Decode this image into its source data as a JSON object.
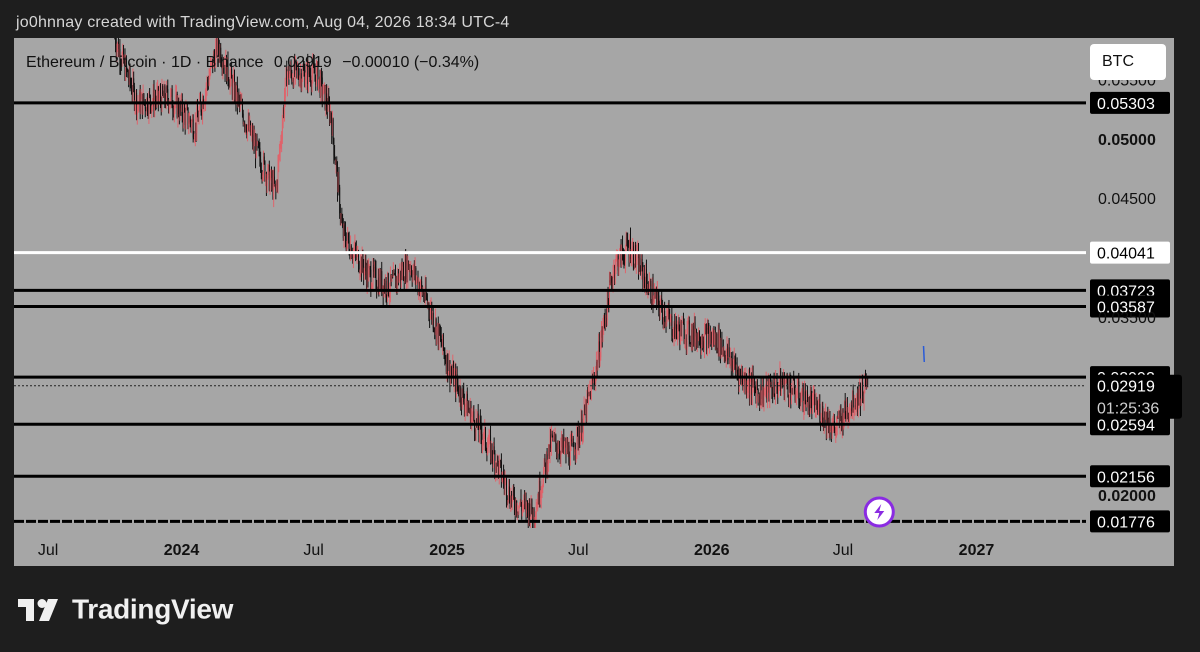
{
  "header": {
    "credit": "jo0hnnay created with TradingView.com, Aug 04, 2026 18:34 UTC-4"
  },
  "legend": {
    "symbol": "Ethereum / Bitcoin · 1D · Binance",
    "price": "0.02919",
    "change": "−0.00010 (−0.34%)"
  },
  "currency_label": "BTC",
  "countdown": "01:25:36",
  "footer": {
    "brand": "TradingView"
  },
  "colors": {
    "background": "#1e1e1e",
    "plot": "#a6a6a6",
    "candle_up": "#e0636b",
    "candle_down": "#111111",
    "level_line": "#000000",
    "highlight_level": "#ffffff",
    "alert_icon": "#8a2be2"
  },
  "chart_data": {
    "type": "candlestick",
    "title": "Ethereum / Bitcoin · 1D · Binance",
    "y_axis": {
      "ticks": [
        "0.05500",
        "0.05000",
        "0.04500",
        "0.03500",
        "0.02000"
      ],
      "range": [
        0.0172,
        0.0585
      ],
      "side": "right"
    },
    "x_axis": {
      "ticks": [
        {
          "label": "Jul",
          "date": "2023-07-01"
        },
        {
          "label": "2024",
          "date": "2024-01-01"
        },
        {
          "label": "Jul",
          "date": "2024-07-01"
        },
        {
          "label": "2025",
          "date": "2025-01-01"
        },
        {
          "label": "Jul",
          "date": "2025-07-01"
        },
        {
          "label": "2026",
          "date": "2026-01-01"
        },
        {
          "label": "Jul",
          "date": "2026-07-01"
        },
        {
          "label": "2027",
          "date": "2027-01-01"
        }
      ],
      "range": [
        "2023-05-15",
        "2027-06-01"
      ]
    },
    "horizontal_levels": [
      {
        "value": 0.05303,
        "label": "0.05303",
        "color": "black"
      },
      {
        "value": 0.04041,
        "label": "0.04041",
        "color": "white"
      },
      {
        "value": 0.03723,
        "label": "0.03723",
        "color": "black"
      },
      {
        "value": 0.03587,
        "label": "0.03587",
        "color": "black"
      },
      {
        "value": 0.02992,
        "label": "0.02992",
        "color": "black"
      },
      {
        "value": 0.02594,
        "label": "0.02594",
        "color": "black"
      },
      {
        "value": 0.02156,
        "label": "0.02156",
        "color": "black"
      },
      {
        "value": 0.01776,
        "label": "0.01776",
        "color": "black"
      }
    ],
    "current_price": {
      "value": 0.02919,
      "label": "0.02919",
      "line": "dotted"
    },
    "price_path": [
      {
        "date": "2023-10-01",
        "close": 0.0585
      },
      {
        "date": "2023-11-01",
        "close": 0.053
      },
      {
        "date": "2023-12-15",
        "close": 0.0535
      },
      {
        "date": "2024-01-20",
        "close": 0.051
      },
      {
        "date": "2024-02-20",
        "close": 0.058
      },
      {
        "date": "2024-03-20",
        "close": 0.053
      },
      {
        "date": "2024-04-20",
        "close": 0.048
      },
      {
        "date": "2024-05-10",
        "close": 0.0455
      },
      {
        "date": "2024-05-25",
        "close": 0.0555
      },
      {
        "date": "2024-07-05",
        "close": 0.0555
      },
      {
        "date": "2024-07-25",
        "close": 0.052
      },
      {
        "date": "2024-08-10",
        "close": 0.042
      },
      {
        "date": "2024-09-15",
        "close": 0.0385
      },
      {
        "date": "2024-10-15",
        "close": 0.0375
      },
      {
        "date": "2024-11-10",
        "close": 0.0395
      },
      {
        "date": "2024-12-10",
        "close": 0.0355
      },
      {
        "date": "2025-01-05",
        "close": 0.0305
      },
      {
        "date": "2025-02-05",
        "close": 0.0265
      },
      {
        "date": "2025-03-05",
        "close": 0.0235
      },
      {
        "date": "2025-04-01",
        "close": 0.0195
      },
      {
        "date": "2025-05-01",
        "close": 0.0185
      },
      {
        "date": "2025-05-25",
        "close": 0.0245
      },
      {
        "date": "2025-06-20",
        "close": 0.0235
      },
      {
        "date": "2025-07-05",
        "close": 0.0255
      },
      {
        "date": "2025-07-25",
        "close": 0.0305
      },
      {
        "date": "2025-08-20",
        "close": 0.0395
      },
      {
        "date": "2025-09-10",
        "close": 0.041
      },
      {
        "date": "2025-10-10",
        "close": 0.037
      },
      {
        "date": "2025-11-10",
        "close": 0.034
      },
      {
        "date": "2025-12-10",
        "close": 0.0335
      },
      {
        "date": "2026-01-10",
        "close": 0.033
      },
      {
        "date": "2026-02-10",
        "close": 0.03
      },
      {
        "date": "2026-03-10",
        "close": 0.0285
      },
      {
        "date": "2026-04-10",
        "close": 0.0295
      },
      {
        "date": "2026-05-10",
        "close": 0.028
      },
      {
        "date": "2026-06-01",
        "close": 0.027
      },
      {
        "date": "2026-06-20",
        "close": 0.0255
      },
      {
        "date": "2026-07-10",
        "close": 0.0275
      },
      {
        "date": "2026-08-04",
        "close": 0.02919
      }
    ]
  }
}
